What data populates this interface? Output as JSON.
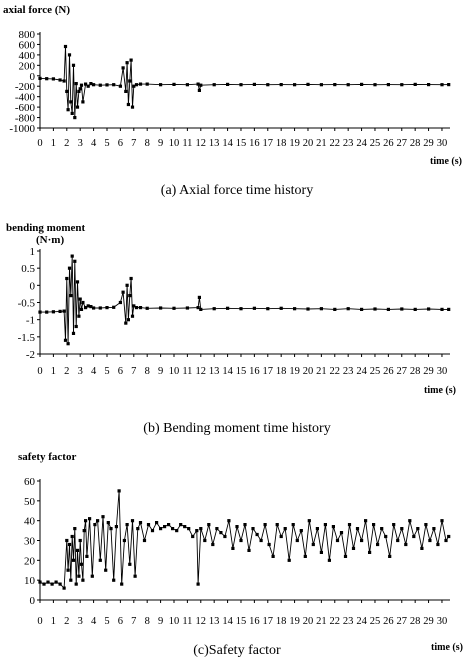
{
  "chart_data": [
    {
      "type": "line",
      "title": "axial force (N)",
      "xlabel": "time (s)",
      "ylabel": "axial force (N)",
      "caption": "(a) Axial force time history",
      "xlim": [
        0,
        30.6
      ],
      "ylim": [
        -1000,
        800
      ],
      "yticks": [
        "800",
        "600",
        "400",
        "200",
        "0",
        "-200",
        "-400",
        "-600",
        "-800",
        "-1000"
      ],
      "ytick_values": [
        800,
        600,
        400,
        200,
        0,
        -200,
        -400,
        -600,
        -800,
        -1000
      ],
      "xticks": [
        "0",
        "1",
        "2",
        "3",
        "4",
        "5",
        "6",
        "7",
        "8",
        "9",
        "10",
        "11",
        "12",
        "13",
        "14",
        "15",
        "16",
        "17",
        "18",
        "19",
        "20",
        "21",
        "22",
        "23",
        "24",
        "25",
        "26",
        "27",
        "28",
        "29",
        "30"
      ],
      "grid": false,
      "series": [
        {
          "x": [
            0,
            0.5,
            1.0,
            1.5,
            1.8,
            1.9,
            2.0,
            2.1,
            2.2,
            2.3,
            2.4,
            2.5,
            2.6,
            2.7,
            2.8,
            2.9,
            3.0,
            3.1,
            3.2,
            3.4,
            3.6,
            3.8,
            4.0,
            4.5,
            5.0,
            5.5,
            6.0,
            6.2,
            6.4,
            6.5,
            6.6,
            6.7,
            6.8,
            6.9,
            7.0,
            7.2,
            7.5,
            8,
            9,
            10,
            11,
            11.8,
            11.9,
            12,
            13,
            14,
            15,
            16,
            17,
            18,
            19,
            20,
            21,
            22,
            23,
            24,
            25,
            26,
            27,
            28,
            29,
            30,
            30.5
          ],
          "y": [
            -50,
            -55,
            -60,
            -80,
            -100,
            560,
            -300,
            -650,
            400,
            -500,
            -720,
            200,
            -800,
            -150,
            -600,
            -300,
            -250,
            -180,
            -500,
            -160,
            -200,
            -150,
            -170,
            -180,
            -175,
            -170,
            -200,
            150,
            -300,
            250,
            -550,
            -100,
            300,
            -600,
            -200,
            -170,
            -160,
            -160,
            -170,
            -165,
            -170,
            -160,
            -280,
            -180,
            -170,
            -165,
            -170,
            -165,
            -170,
            -168,
            -170,
            -165,
            -170,
            -168,
            -170,
            -165,
            -170,
            -168,
            -170,
            -165,
            -168,
            -170,
            -168
          ]
        }
      ]
    },
    {
      "type": "line",
      "title": "bending moment",
      "title_unit": "(N·m)",
      "xlabel": "time (s)",
      "ylabel": "bending moment (N·m)",
      "caption": "(b) Bending moment time history",
      "xlim": [
        0,
        30.6
      ],
      "ylim": [
        -2,
        1
      ],
      "yticks": [
        "1",
        "0.5",
        "0",
        "-0.5",
        "-1",
        "-1.5",
        "-2"
      ],
      "ytick_values": [
        1,
        0.5,
        0,
        -0.5,
        -1,
        -1.5,
        -2
      ],
      "xticks": [
        "0",
        "1",
        "2",
        "3",
        "4",
        "5",
        "6",
        "7",
        "8",
        "9",
        "10",
        "11",
        "12",
        "13",
        "14",
        "15",
        "16",
        "17",
        "18",
        "19",
        "20",
        "21",
        "22",
        "23",
        "24",
        "25",
        "26",
        "27",
        "28",
        "29",
        "30"
      ],
      "grid": false,
      "series": [
        {
          "x": [
            0,
            0.5,
            1.0,
            1.5,
            1.8,
            1.9,
            2.0,
            2.1,
            2.2,
            2.3,
            2.4,
            2.5,
            2.6,
            2.7,
            2.8,
            2.9,
            3.0,
            3.1,
            3.2,
            3.4,
            3.6,
            3.8,
            4.0,
            4.5,
            5.0,
            5.5,
            6.0,
            6.2,
            6.4,
            6.5,
            6.6,
            6.7,
            6.8,
            6.9,
            7.0,
            7.2,
            7.5,
            8,
            9,
            10,
            11,
            11.8,
            11.9,
            12,
            13,
            14,
            15,
            16,
            17,
            18,
            19,
            20,
            21,
            22,
            23,
            24,
            25,
            26,
            27,
            28,
            29,
            30,
            30.5
          ],
          "y": [
            -0.78,
            -0.78,
            -0.77,
            -0.76,
            -0.75,
            -1.6,
            0.2,
            -1.7,
            0.5,
            -0.3,
            0.85,
            -1.4,
            0.7,
            -1.2,
            0.1,
            -0.9,
            -0.4,
            -0.7,
            -0.5,
            -0.65,
            -0.6,
            -0.62,
            -0.66,
            -0.66,
            -0.65,
            -0.64,
            -0.5,
            -0.2,
            -1.1,
            0.0,
            -1.0,
            -0.3,
            0.2,
            -0.9,
            -0.6,
            -0.65,
            -0.65,
            -0.67,
            -0.66,
            -0.67,
            -0.66,
            -0.65,
            -0.35,
            -0.7,
            -0.68,
            -0.67,
            -0.68,
            -0.67,
            -0.68,
            -0.67,
            -0.68,
            -0.69,
            -0.68,
            -0.7,
            -0.68,
            -0.7,
            -0.69,
            -0.7,
            -0.69,
            -0.7,
            -0.69,
            -0.7,
            -0.7
          ]
        }
      ]
    },
    {
      "type": "line",
      "title": "safety factor",
      "xlabel": "time (s)",
      "ylabel": "safety factor",
      "caption": "(c)Safety factor",
      "xlim": [
        0,
        30.6
      ],
      "ylim": [
        0,
        60
      ],
      "yticks": [
        "60",
        "50",
        "40",
        "30",
        "20",
        "10",
        "0"
      ],
      "ytick_values": [
        60,
        50,
        40,
        30,
        20,
        10,
        0
      ],
      "xticks": [
        "0",
        "1",
        "2",
        "3",
        "4",
        "5",
        "6",
        "7",
        "8",
        "9",
        "10",
        "11",
        "12",
        "13",
        "14",
        "15",
        "16",
        "17",
        "18",
        "19",
        "20",
        "21",
        "22",
        "23",
        "24",
        "25",
        "26",
        "27",
        "28",
        "29",
        "30"
      ],
      "grid": false,
      "series": [
        {
          "x": [
            0,
            0.3,
            0.6,
            0.9,
            1.2,
            1.5,
            1.8,
            2.0,
            2.1,
            2.2,
            2.3,
            2.4,
            2.5,
            2.6,
            2.7,
            2.8,
            2.9,
            3.0,
            3.1,
            3.2,
            3.3,
            3.4,
            3.5,
            3.7,
            3.9,
            4.1,
            4.3,
            4.5,
            4.7,
            4.9,
            5.1,
            5.3,
            5.5,
            5.7,
            5.9,
            6.1,
            6.3,
            6.5,
            6.7,
            6.9,
            7.1,
            7.3,
            7.5,
            7.8,
            8.1,
            8.4,
            8.7,
            9.0,
            9.3,
            9.6,
            9.9,
            10.2,
            10.5,
            10.8,
            11.1,
            11.4,
            11.7,
            11.8,
            12.0,
            12.3,
            12.6,
            12.9,
            13.2,
            13.5,
            13.8,
            14.1,
            14.4,
            14.7,
            15.0,
            15.3,
            15.6,
            15.9,
            16.2,
            16.5,
            16.8,
            17.1,
            17.4,
            17.7,
            18.0,
            18.3,
            18.6,
            18.9,
            19.2,
            19.5,
            19.8,
            20.1,
            20.4,
            20.7,
            21.0,
            21.3,
            21.6,
            21.9,
            22.2,
            22.5,
            22.8,
            23.1,
            23.4,
            23.7,
            24.0,
            24.3,
            24.6,
            24.9,
            25.2,
            25.5,
            25.8,
            26.1,
            26.4,
            26.7,
            27.0,
            27.3,
            27.6,
            27.9,
            28.2,
            28.5,
            28.8,
            29.1,
            29.4,
            29.7,
            30.0,
            30.3,
            30.5
          ],
          "y": [
            9,
            8,
            9,
            8,
            9,
            8,
            6,
            30,
            15,
            28,
            10,
            32,
            20,
            36,
            8,
            25,
            12,
            30,
            18,
            10,
            35,
            40,
            22,
            41,
            12,
            38,
            40,
            20,
            42,
            15,
            39,
            36,
            10,
            37,
            55,
            8,
            30,
            38,
            18,
            40,
            12,
            36,
            39,
            30,
            38,
            35,
            39,
            36,
            37,
            38,
            36,
            35,
            38,
            37,
            36,
            32,
            35,
            8,
            36,
            30,
            38,
            28,
            36,
            34,
            32,
            40,
            26,
            37,
            30,
            38,
            25,
            36,
            33,
            30,
            38,
            28,
            22,
            38,
            32,
            36,
            20,
            38,
            30,
            35,
            22,
            40,
            28,
            36,
            24,
            38,
            20,
            37,
            30,
            34,
            22,
            38,
            26,
            36,
            30,
            40,
            24,
            38,
            28,
            36,
            32,
            22,
            38,
            30,
            36,
            28,
            40,
            32,
            36,
            26,
            38,
            30,
            36,
            28,
            40,
            30,
            32
          ]
        }
      ]
    }
  ]
}
